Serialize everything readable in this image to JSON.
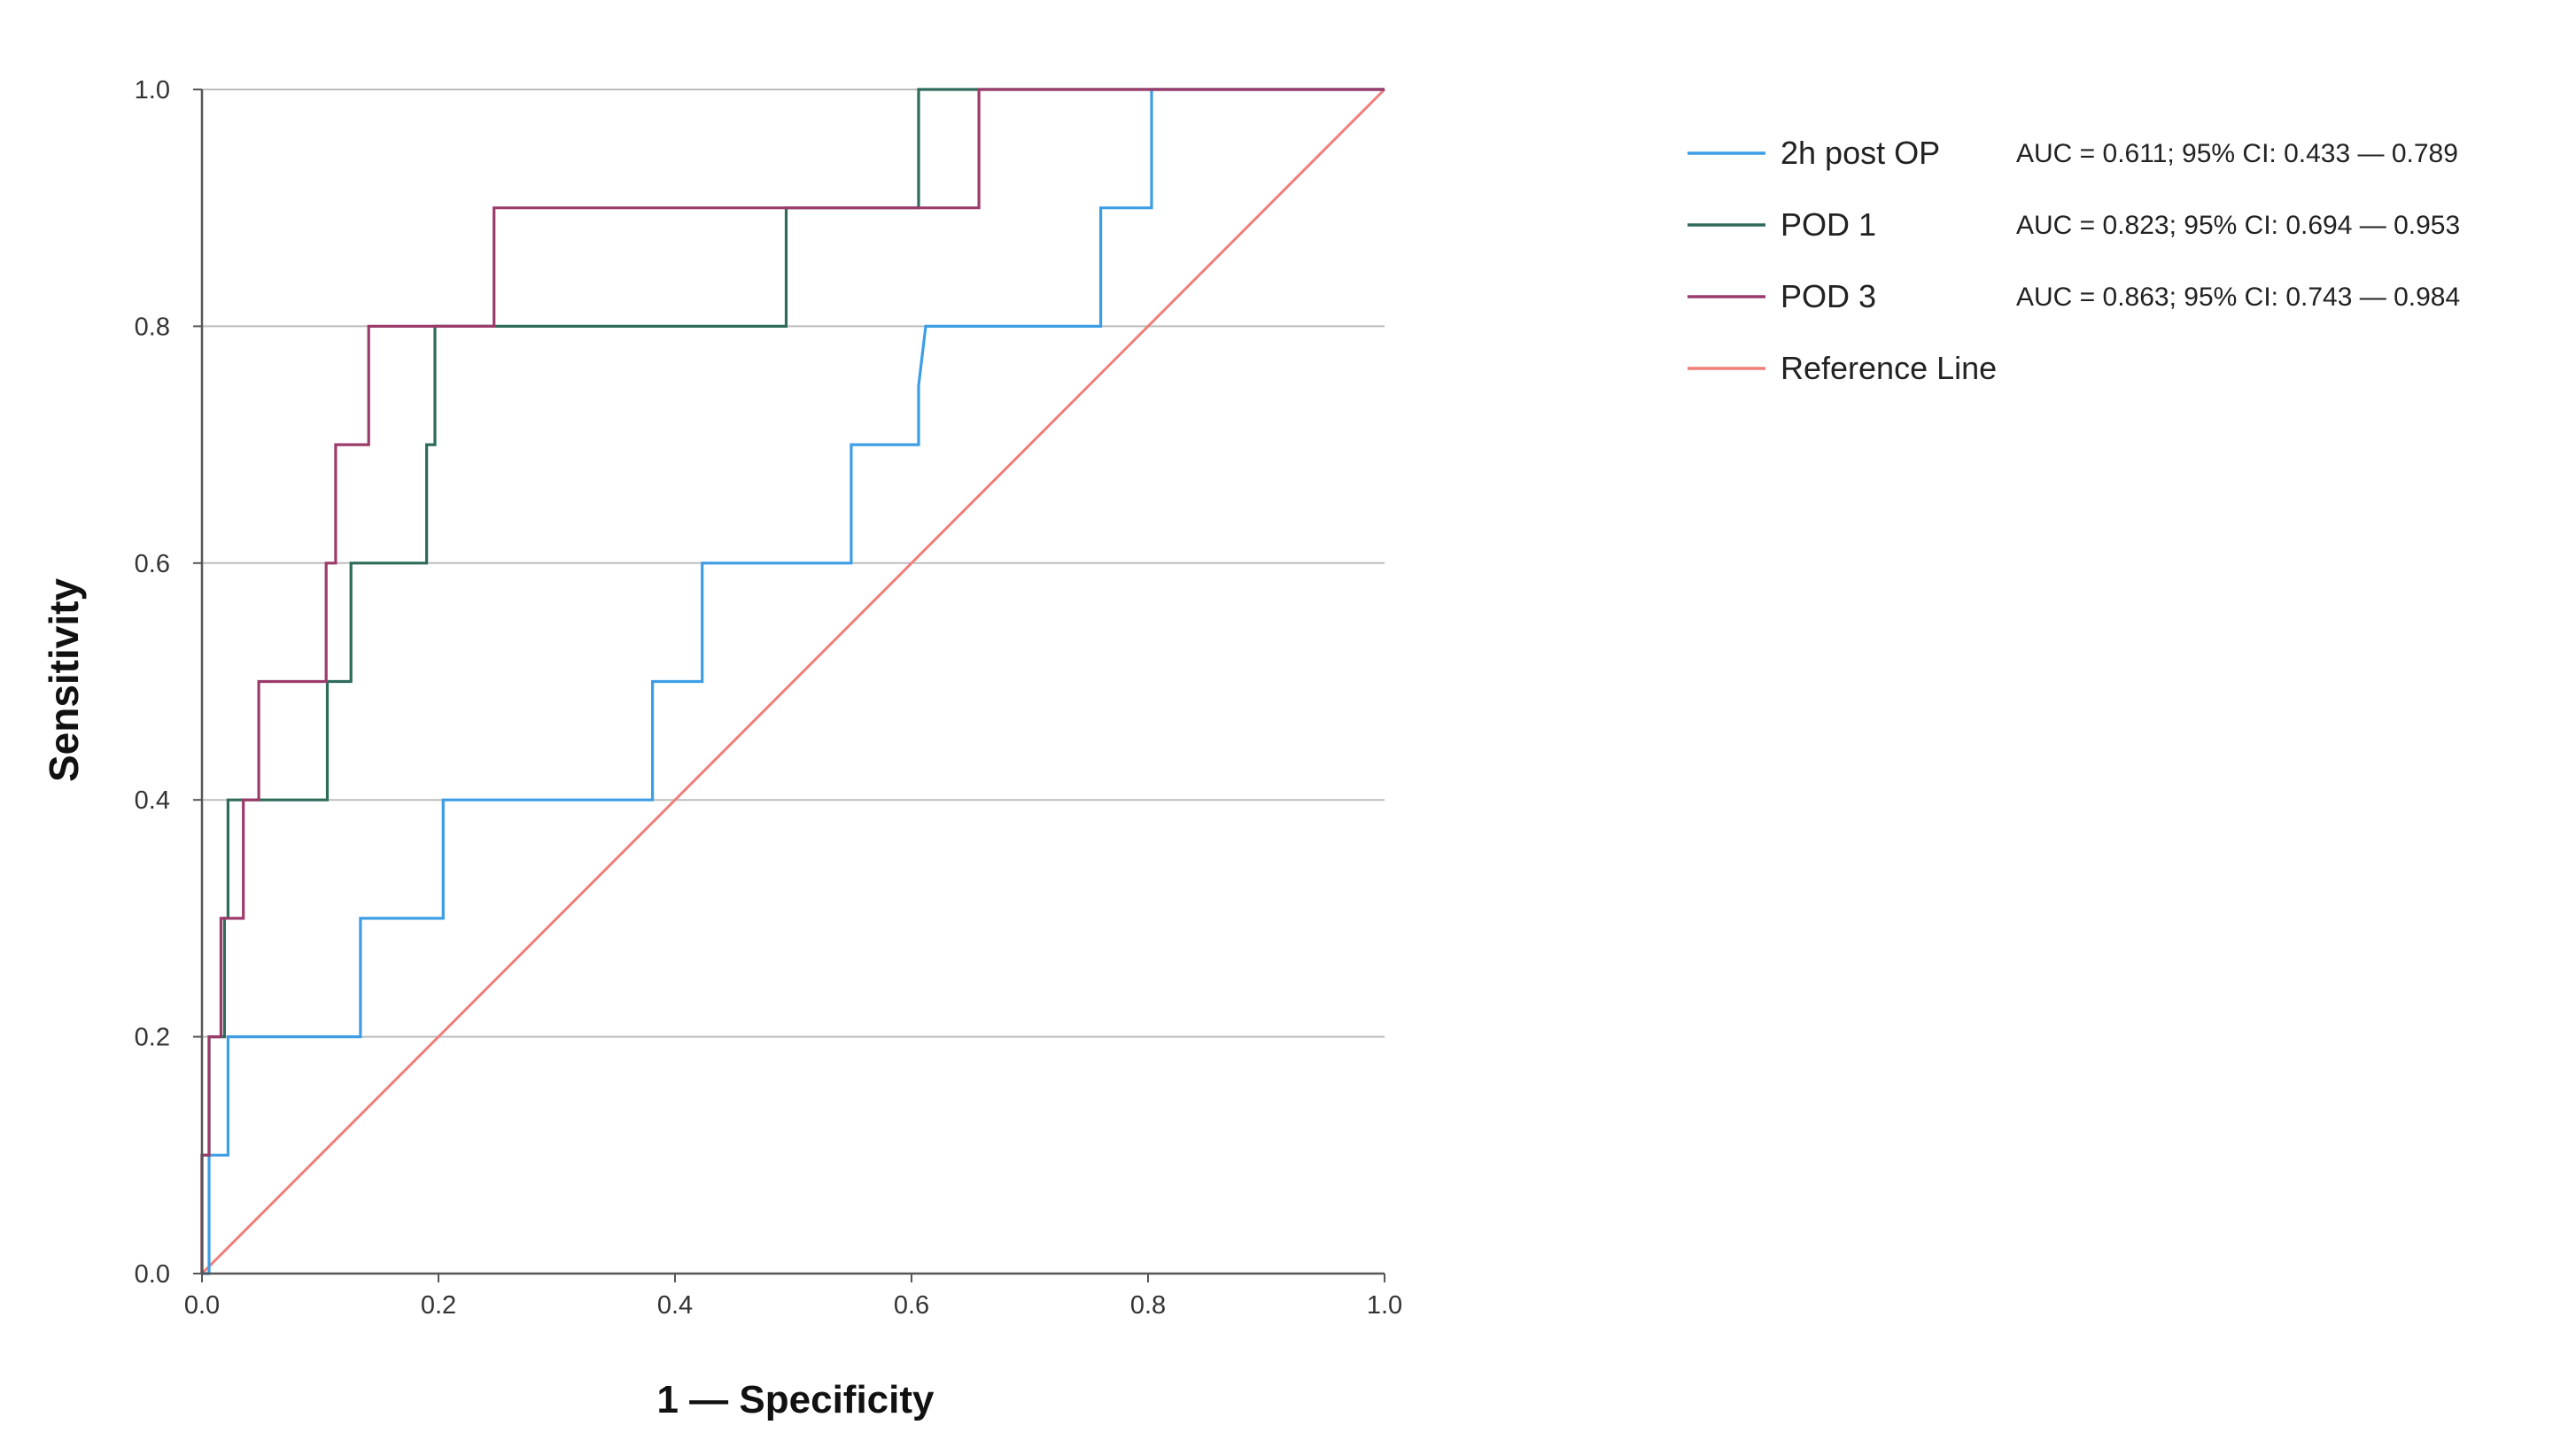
{
  "chart_data": {
    "type": "line",
    "title": "",
    "xlabel": "1 — Specificity",
    "ylabel": "Sensitivity",
    "xlim": [
      0,
      1
    ],
    "ylim": [
      0,
      1
    ],
    "grid": "horizontal",
    "legend_position": "right",
    "x_ticks": [
      {
        "value": 0.0,
        "label": "0.0"
      },
      {
        "value": 0.2,
        "label": "0.2"
      },
      {
        "value": 0.4,
        "label": "0.4"
      },
      {
        "value": 0.6,
        "label": "0.6"
      },
      {
        "value": 0.8,
        "label": "0.8"
      },
      {
        "value": 1.0,
        "label": "1.0"
      }
    ],
    "y_ticks": [
      {
        "value": 0.0,
        "label": "0.0"
      },
      {
        "value": 0.2,
        "label": "0.2"
      },
      {
        "value": 0.4,
        "label": "0.4"
      },
      {
        "value": 0.6,
        "label": "0.6"
      },
      {
        "value": 0.8,
        "label": "0.8"
      },
      {
        "value": 1.0,
        "label": "1.0"
      }
    ],
    "series": [
      {
        "name": "2h post OP",
        "auc_label": "AUC = 0.611; 95% CI: 0.433 — 0.789",
        "color": "#3d9ee6",
        "x": [
          0.0,
          0.006,
          0.006,
          0.022,
          0.022,
          0.134,
          0.134,
          0.204,
          0.204,
          0.381,
          0.381,
          0.423,
          0.423,
          0.549,
          0.549,
          0.606,
          0.606,
          0.612,
          0.612,
          0.76,
          0.76,
          0.803,
          0.803,
          1.0
        ],
        "y": [
          0.0,
          0.0,
          0.1,
          0.1,
          0.2,
          0.2,
          0.3,
          0.3,
          0.4,
          0.4,
          0.5,
          0.5,
          0.6,
          0.6,
          0.7,
          0.7,
          0.75,
          0.8,
          0.8,
          0.8,
          0.9,
          0.9,
          1.0,
          1.0
        ]
      },
      {
        "name": "POD 1",
        "auc_label": "AUC = 0.823; 95% CI: 0.694 — 0.953",
        "color": "#2e6b5a",
        "x": [
          0.0,
          0.0,
          0.006,
          0.006,
          0.019,
          0.019,
          0.022,
          0.022,
          0.106,
          0.106,
          0.126,
          0.126,
          0.19,
          0.19,
          0.197,
          0.197,
          0.494,
          0.494,
          0.606,
          0.606,
          1.0
        ],
        "y": [
          0.0,
          0.1,
          0.1,
          0.2,
          0.2,
          0.3,
          0.3,
          0.4,
          0.4,
          0.5,
          0.5,
          0.6,
          0.6,
          0.7,
          0.7,
          0.8,
          0.8,
          0.9,
          0.9,
          1.0,
          1.0
        ]
      },
      {
        "name": "POD 3",
        "auc_label": "AUC = 0.863; 95% CI: 0.743 — 0.984",
        "color": "#9b3b6b",
        "x": [
          0.0,
          0.0,
          0.006,
          0.006,
          0.016,
          0.016,
          0.035,
          0.035,
          0.048,
          0.048,
          0.105,
          0.105,
          0.113,
          0.113,
          0.141,
          0.141,
          0.247,
          0.247,
          0.657,
          0.657,
          1.0
        ],
        "y": [
          0.0,
          0.1,
          0.1,
          0.2,
          0.2,
          0.3,
          0.3,
          0.4,
          0.4,
          0.5,
          0.5,
          0.6,
          0.6,
          0.7,
          0.7,
          0.8,
          0.8,
          0.9,
          0.9,
          1.0,
          1.0
        ]
      },
      {
        "name": "Reference Line",
        "auc_label": "",
        "color": "#f07e7a",
        "x": [
          0.0,
          1.0
        ],
        "y": [
          0.0,
          1.0
        ]
      }
    ]
  }
}
